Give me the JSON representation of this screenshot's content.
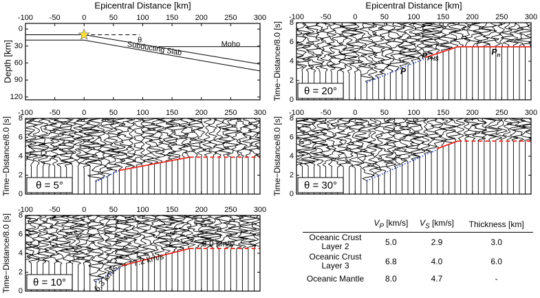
{
  "chart_data": [
    {
      "type": "cross-section",
      "xlabel": "Epicentral Distance [km]",
      "ylabel": "Depth [km]",
      "xlim": [
        -100,
        300
      ],
      "xticks": [
        -100,
        -50,
        0,
        50,
        100,
        150,
        200,
        250,
        300
      ],
      "ylim": [
        -10,
        125
      ],
      "yticks": [
        0,
        30,
        60,
        90,
        120
      ],
      "yaxis_inverted": true,
      "lines": [
        {
          "x": [
            -100,
            0,
            300
          ],
          "values": [
            10,
            10,
            62
          ],
          "color": "#000000",
          "style": "solid"
        },
        {
          "x": [
            -100,
            0,
            300
          ],
          "values": [
            19.5,
            19.5,
            74
          ],
          "color": "#000000",
          "style": "solid"
        },
        {
          "x": [
            127,
            300
          ],
          "values": [
            31,
            31
          ],
          "color": "#000000",
          "style": "solid"
        },
        {
          "x": [
            0,
            95
          ],
          "values": [
            10,
            10
          ],
          "color": "#000000",
          "style": "dashed"
        }
      ],
      "star": {
        "x": 0,
        "y": 10,
        "color": "#ffe033"
      },
      "annotations": [
        {
          "text": "θ",
          "color": "#000000"
        },
        {
          "text": "Moho",
          "color": "#000000"
        },
        {
          "text": "Subducting Slab",
          "color": "#000000"
        }
      ]
    },
    {
      "type": "seismogram",
      "label": "θ = 5°",
      "ylabel": "Time−Distance/8.0 [s]",
      "xlim": [
        -100,
        300
      ],
      "xticks": [
        -100,
        -50,
        0,
        50,
        100,
        150,
        200,
        250,
        300
      ],
      "ylim": [
        0,
        8
      ],
      "yticks": [
        0,
        2,
        4,
        6,
        8
      ],
      "series": [
        {
          "x": [
            20,
            60
          ],
          "values": [
            1.3,
            2.5
          ],
          "color": "#3344cc",
          "style": "dotted"
        },
        {
          "x": [
            60,
            180
          ],
          "values": [
            2.5,
            3.9
          ],
          "color": "#e8281e",
          "style": "solid"
        },
        {
          "x": [
            180,
            300
          ],
          "values": [
            3.9,
            3.9
          ],
          "color": "#e8281e",
          "style": "dashed"
        }
      ],
      "annotations": []
    },
    {
      "type": "seismogram",
      "label": "θ = 10°",
      "ylabel": "Time−Distance/8.0 [s]",
      "xlim": [
        -100,
        300
      ],
      "xticks": [
        -100,
        -50,
        0,
        50,
        100,
        150,
        200,
        250,
        300
      ],
      "ylim": [
        0,
        8
      ],
      "yticks": [
        0,
        2,
        4,
        6,
        8
      ],
      "series": [
        {
          "x": [
            20,
            65
          ],
          "values": [
            1.0,
            2.6
          ],
          "color": "#3344cc",
          "style": "dotted"
        },
        {
          "x": [
            65,
            180
          ],
          "values": [
            2.7,
            4.5
          ],
          "color": "#e8281e",
          "style": "solid"
        },
        {
          "x": [
            180,
            300
          ],
          "values": [
            4.5,
            4.5
          ],
          "color": "#e8281e",
          "style": "dashed"
        }
      ],
      "annotations": [
        {
          "text": "6.3 km/s",
          "color": "#3344cc"
        },
        {
          "text": "7.2 km/s",
          "color": "#e8281e"
        },
        {
          "text": "8.0 km/s",
          "color": "#e8281e"
        }
      ]
    },
    {
      "type": "seismogram",
      "label": "θ = 20°",
      "xlabel": "Epicentral Distance [km]",
      "ylabel": "Time−Distance/8.0 [s]",
      "xlim": [
        -100,
        300
      ],
      "xticks": [
        -100,
        -50,
        0,
        50,
        100,
        150,
        200,
        250,
        300
      ],
      "ylim": [
        0,
        8
      ],
      "yticks": [
        0,
        2,
        4,
        6,
        8
      ],
      "series": [
        {
          "x": [
            20,
            120
          ],
          "values": [
            1.8,
            4.3
          ],
          "color": "#3344cc",
          "style": "dotted"
        },
        {
          "x": [
            120,
            175,
            300
          ],
          "values": [
            4.4,
            5.5,
            5.5
          ],
          "color": "#e8281e",
          "style": "solid"
        }
      ],
      "annotations": [
        {
          "text": "P",
          "color": "#3344cc"
        },
        {
          "text": "P",
          "sub": "PHS",
          "color": "#e8281e"
        },
        {
          "text": "P",
          "sub": "n",
          "color": "#e8281e"
        }
      ]
    },
    {
      "type": "seismogram",
      "label": "θ = 30°",
      "ylabel": "Time−Distance/8.0 [s]",
      "xlim": [
        -100,
        300
      ],
      "xticks": [
        -100,
        -50,
        0,
        50,
        100,
        150,
        200,
        250,
        300
      ],
      "ylim": [
        0,
        8
      ],
      "yticks": [
        0,
        2,
        4,
        6,
        8
      ],
      "series": [
        {
          "x": [
            20,
            140
          ],
          "values": [
            1.4,
            4.7
          ],
          "color": "#3344cc",
          "style": "dotted"
        },
        {
          "x": [
            140,
            175
          ],
          "values": [
            4.8,
            5.6
          ],
          "color": "#e8281e",
          "style": "solid"
        },
        {
          "x": [
            175,
            300
          ],
          "values": [
            5.6,
            5.6
          ],
          "color": "#e8281e",
          "style": "dashed"
        }
      ],
      "annotations": []
    }
  ],
  "table": {
    "columns": [
      {
        "main": "V",
        "sub": "P",
        "rest": " [km/s]"
      },
      {
        "main": "V",
        "sub": "S",
        "rest": " [km/s]"
      },
      {
        "main": "Thickness [km]"
      }
    ],
    "rows": [
      [
        "Oceanic Crust Layer 2",
        "5.0",
        "2.9",
        "3.0"
      ],
      [
        "Oceanic Crust Layer 3",
        "6.8",
        "4.0",
        "6.0"
      ],
      [
        "Oceanic Mantle",
        "8.0",
        "4.7",
        "-"
      ]
    ]
  }
}
